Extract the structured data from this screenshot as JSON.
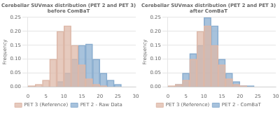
{
  "chart_data": [
    {
      "type": "histogram",
      "title": "Cerebellar SUVmax distribution (PET 2 and PET 3)\nbefore ComBaT",
      "ylabel": "Frequency",
      "bins": [
        0,
        2,
        4,
        6,
        8,
        10,
        12,
        14,
        16,
        18,
        20,
        22,
        24,
        26
      ],
      "series": [
        {
          "name": "PET 3 (Reference)",
          "color": "#ddb8a8",
          "values": [
            0.005,
            0.01,
            0.025,
            0.1,
            0.2,
            0.22,
            0.15,
            0.08,
            0.03,
            0.01,
            0.005,
            0.0,
            0.0
          ]
        },
        {
          "name": "PET 2 - Raw Data",
          "color": "#8aaed0",
          "values": [
            0.0,
            0.0,
            0.0,
            0.0,
            0.02,
            0.05,
            0.1,
            0.15,
            0.155,
            0.1,
            0.05,
            0.025,
            0.01
          ]
        }
      ],
      "xlim": [
        0,
        30
      ],
      "xticks": [
        0,
        5,
        10,
        15,
        20,
        25,
        30
      ],
      "ylim": [
        0,
        0.25
      ],
      "yticks": [
        {
          "value": 0.0,
          "label": "0.00"
        },
        {
          "value": 0.05,
          "label": "0.05"
        },
        {
          "value": 0.1,
          "label": "0.10"
        },
        {
          "value": 0.15,
          "label": "0.15"
        },
        {
          "value": 0.2,
          "label": "0.20"
        },
        {
          "value": 0.25,
          "label": "0.25"
        }
      ],
      "grid": true,
      "legend": "bottom"
    },
    {
      "type": "histogram",
      "title": "Cerebellar SUVmax distribution (PET 2 and PET 3)\nafter ComBaT",
      "ylabel": "Frequency",
      "bins": [
        0,
        2,
        4,
        6,
        8,
        10,
        12,
        14,
        16,
        18,
        20,
        22,
        24,
        26
      ],
      "series": [
        {
          "name": "PET 3 (Reference)",
          "color": "#ddb8a8",
          "values": [
            0.005,
            0.01,
            0.025,
            0.1,
            0.2,
            0.22,
            0.15,
            0.08,
            0.03,
            0.01,
            0.005,
            0.0,
            0.0
          ]
        },
        {
          "name": "PET 2 - ComBaT",
          "color": "#8aaed0",
          "values": [
            0.0,
            0.01,
            0.05,
            0.12,
            0.15,
            0.25,
            0.22,
            0.1,
            0.05,
            0.02,
            0.005,
            0.005,
            0.0
          ]
        }
      ],
      "xlim": [
        0,
        30
      ],
      "xticks": [
        0,
        5,
        10,
        15,
        20,
        25,
        30
      ],
      "ylim": [
        0,
        0.25
      ],
      "yticks": [
        {
          "value": 0.0,
          "label": "0.00"
        },
        {
          "value": 0.05,
          "label": "0.05"
        },
        {
          "value": 0.1,
          "label": "0.10"
        },
        {
          "value": 0.15,
          "label": "0.15"
        },
        {
          "value": 0.2,
          "label": "0.20"
        },
        {
          "value": 0.25,
          "label": "0.25"
        }
      ],
      "grid": true,
      "legend": "bottom"
    }
  ]
}
